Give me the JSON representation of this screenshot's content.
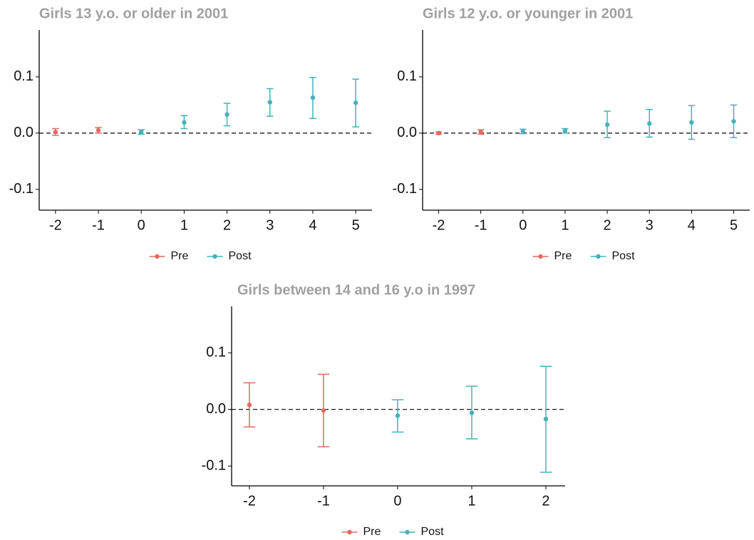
{
  "chart_data": [
    {
      "type": "errorbar",
      "title": "Girls 13 y.o. or older in 2001",
      "xlim": [
        -2.38,
        5.38
      ],
      "xticks": [
        -2,
        -1,
        0,
        1,
        2,
        3,
        4,
        5
      ],
      "ylim": [
        -0.137,
        0.1835
      ],
      "yticks": [
        -0.1,
        {
          "value": 0,
          "label": "0.0"
        },
        0.1
      ],
      "hline": 0,
      "legend": "bottom",
      "series": [
        {
          "name": "Pre",
          "color": "#e06b63",
          "x": [
            -2,
            -1
          ],
          "values": [
            0.002,
            0.005
          ],
          "lower": [
            -0.004,
            0.0
          ],
          "upper": [
            0.008,
            0.01
          ]
        },
        {
          "name": "Post",
          "color": "#43b3b8",
          "x": [
            0,
            1,
            2,
            3,
            4,
            5
          ],
          "values": [
            0.002,
            0.019,
            0.033,
            0.055,
            0.063,
            0.054
          ],
          "lower": [
            -0.002,
            0.008,
            0.013,
            0.03,
            0.026,
            0.011
          ],
          "upper": [
            0.006,
            0.031,
            0.053,
            0.079,
            0.099,
            0.096
          ]
        }
      ]
    },
    {
      "type": "errorbar",
      "title": "Girls 12 y.o. or younger in 2001",
      "xlim": [
        -2.38,
        5.38
      ],
      "xticks": [
        -2,
        -1,
        0,
        1,
        2,
        3,
        4,
        5
      ],
      "ylim": [
        -0.137,
        0.1835
      ],
      "yticks": [
        -0.1,
        {
          "value": 0,
          "label": "0.0"
        },
        0.1
      ],
      "hline": 0,
      "legend": "bottom",
      "series": [
        {
          "name": "Pre",
          "color": "#e06b63",
          "x": [
            -2,
            -1
          ],
          "values": [
            0.0,
            0.002
          ],
          "lower": [
            -0.002,
            -0.002
          ],
          "upper": [
            0.002,
            0.006
          ]
        },
        {
          "name": "Post",
          "color": "#43b3b8",
          "x": [
            0,
            1,
            2,
            3,
            4,
            5
          ],
          "values": [
            0.003,
            0.004,
            0.015,
            0.017,
            0.019,
            0.021
          ],
          "lower": [
            -0.001,
            0.0,
            -0.008,
            -0.007,
            -0.011,
            -0.008
          ],
          "upper": [
            0.007,
            0.008,
            0.039,
            0.042,
            0.049,
            0.05
          ]
        }
      ]
    },
    {
      "type": "errorbar",
      "title": "Girls between 14 and 16 y.o in 1997",
      "xlim": [
        -2.24,
        2.26
      ],
      "xticks": [
        -2,
        -1,
        0,
        1,
        2
      ],
      "ylim": [
        -0.135,
        0.182
      ],
      "yticks": [
        -0.1,
        {
          "value": 0,
          "label": "0.0"
        },
        0.1
      ],
      "hline": 0,
      "legend": "bottom",
      "series": [
        {
          "name": "Pre",
          "color": "#e06b63",
          "x": [
            -2,
            -1
          ],
          "values": [
            0.008,
            -0.002
          ],
          "lower": [
            -0.031,
            -0.066
          ],
          "upper": [
            0.047,
            0.062
          ]
        },
        {
          "name": "Post",
          "color": "#43b3b8",
          "x": [
            0,
            1,
            2
          ],
          "values": [
            -0.011,
            -0.006,
            -0.017
          ],
          "lower": [
            -0.04,
            -0.052,
            -0.111
          ],
          "upper": [
            0.017,
            0.041,
            0.076
          ]
        }
      ]
    }
  ]
}
